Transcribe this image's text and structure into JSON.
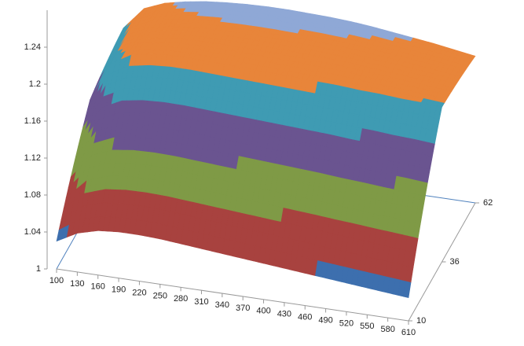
{
  "chart_data": {
    "type": "surface",
    "x": [
      100,
      130,
      160,
      190,
      220,
      250,
      280,
      310,
      340,
      370,
      400,
      430,
      460,
      490,
      520,
      550,
      580,
      610
    ],
    "series": [
      {
        "name": "10",
        "values": [
          1.03,
          1.042,
          1.048,
          1.05,
          1.05,
          1.049,
          1.047,
          1.045,
          1.043,
          1.041,
          1.039,
          1.037,
          1.035,
          1.033,
          1.031,
          1.029,
          1.027,
          1.025
        ]
      },
      {
        "name": "36",
        "values": [
          1.14,
          1.19,
          1.205,
          1.21,
          1.212,
          1.212,
          1.211,
          1.21,
          1.209,
          1.208,
          1.207,
          1.206,
          1.205,
          1.203,
          1.202,
          1.2,
          1.199,
          1.197
        ]
      },
      {
        "name": "62",
        "values": [
          1.19,
          1.225,
          1.238,
          1.245,
          1.25,
          1.253,
          1.255,
          1.256,
          1.256,
          1.255,
          1.254,
          1.252,
          1.249,
          1.245,
          1.241,
          1.237,
          1.232,
          1.227
        ]
      }
    ],
    "ylim": [
      1,
      1.28
    ],
    "yticks": [
      1,
      1.04,
      1.08,
      1.12,
      1.16,
      1.2,
      1.24
    ],
    "band_colors": [
      "#3d6fae",
      "#a8423f",
      "#7f9a46",
      "#6a5490",
      "#3f9bb3",
      "#e8853a",
      "#8fa8d6"
    ]
  }
}
